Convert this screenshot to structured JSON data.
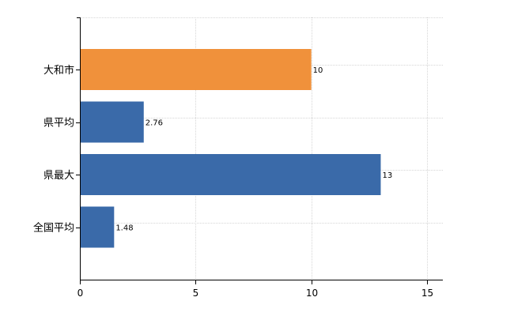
{
  "chart_data": {
    "type": "bar",
    "orientation": "horizontal",
    "categories": [
      "大和市",
      "県平均",
      "県最大",
      "全国平均"
    ],
    "values": [
      10,
      2.76,
      13,
      1.48
    ],
    "value_labels": [
      "10",
      "2.76",
      "13",
      "1.48"
    ],
    "bar_colors": [
      "#f0913b",
      "#3a6aa9",
      "#3a6aa9",
      "#3a6aa9"
    ],
    "xlim": [
      0,
      15
    ],
    "xticks": [
      0,
      5,
      10,
      15
    ],
    "xtick_labels": [
      "0",
      "5",
      "10",
      "15"
    ],
    "grid": true,
    "title": "",
    "xlabel": "",
    "ylabel": ""
  }
}
